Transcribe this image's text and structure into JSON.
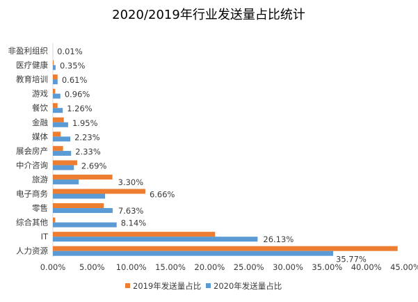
{
  "chart_data": {
    "type": "bar",
    "orientation": "horizontal",
    "title": "2020/2019年行业发送量占比统计",
    "xlabel": "",
    "ylabel": "",
    "xlim": [
      0,
      45
    ],
    "tick_values": [
      0,
      5,
      10,
      15,
      20,
      25,
      30,
      35,
      40,
      45
    ],
    "tick_labels": [
      "0.00%",
      "5.00%",
      "10.00%",
      "15.00%",
      "20.00%",
      "25.00%",
      "30.00%",
      "35.00%",
      "40.00%",
      "45.00%"
    ],
    "categories": [
      "非盈利组织",
      "医疗健康",
      "教育培训",
      "游戏",
      "餐饮",
      "金融",
      "媒体",
      "展会房产",
      "中介咨询",
      "旅游",
      "电子商务",
      "零售",
      "综合其他",
      "IT",
      "人力资源"
    ],
    "series": [
      {
        "name": "2019年发送量占比",
        "color": "#ED7D31",
        "values": [
          0.0,
          0.1,
          0.6,
          0.3,
          0.6,
          1.4,
          1.0,
          1.3,
          3.1,
          7.6,
          11.8,
          6.5,
          0.3,
          20.7,
          44.0
        ]
      },
      {
        "name": "2020年发送量占比",
        "color": "#5B9BD5",
        "values": [
          0.01,
          0.35,
          0.61,
          0.96,
          1.26,
          1.95,
          2.23,
          2.33,
          2.69,
          3.3,
          6.66,
          7.63,
          8.14,
          26.13,
          35.77
        ],
        "labels": [
          "0.01%",
          "0.35%",
          "0.61%",
          "0.96%",
          "1.26%",
          "1.95%",
          "2.23%",
          "2.33%",
          "2.69%",
          "3.30%",
          "6.66%",
          "7.63%",
          "8.14%",
          "26.13%",
          "35.77%"
        ]
      }
    ],
    "grid": false,
    "legend_position": "bottom"
  }
}
